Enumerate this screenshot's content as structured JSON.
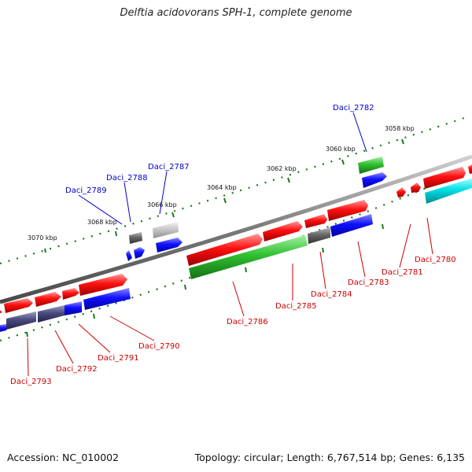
{
  "title": "Delftia acidovorans SPH-1, complete genome",
  "footer": {
    "accession": "Accession: NC_010002",
    "summary": "Topology: circular; Length: 6,767,514 bp; Genes: 6,135"
  },
  "colors": {
    "forward_gene": "#e60000",
    "reverse_gene": "#0000e6",
    "rna_gene": "#22b422",
    "pseudo_gene": "#555555",
    "cyan_gene": "#00d8e0",
    "forward_label": "#cc0000",
    "reverse_label": "#0000cc",
    "backbone": "#808080",
    "tick": "#1a7a1a"
  },
  "scale_labels": [
    "3070 kbp",
    "3068 kbp",
    "3066 kbp",
    "3064 kbp",
    "3062 kbp",
    "3060 kbp",
    "3058 kbp"
  ],
  "genes_above": [
    {
      "label": "Daci_2789"
    },
    {
      "label": "Daci_2788"
    },
    {
      "label": "Daci_2787"
    },
    {
      "label": "Daci_2782"
    }
  ],
  "genes_below": [
    {
      "label": "Daci_2793"
    },
    {
      "label": "Daci_2792"
    },
    {
      "label": "Daci_2791"
    },
    {
      "label": "Daci_2790"
    },
    {
      "label": "Daci_2786"
    },
    {
      "label": "Daci_2785"
    },
    {
      "label": "Daci_2784"
    },
    {
      "label": "Daci_2783"
    },
    {
      "label": "Daci_2781"
    },
    {
      "label": "Daci_2780"
    }
  ]
}
